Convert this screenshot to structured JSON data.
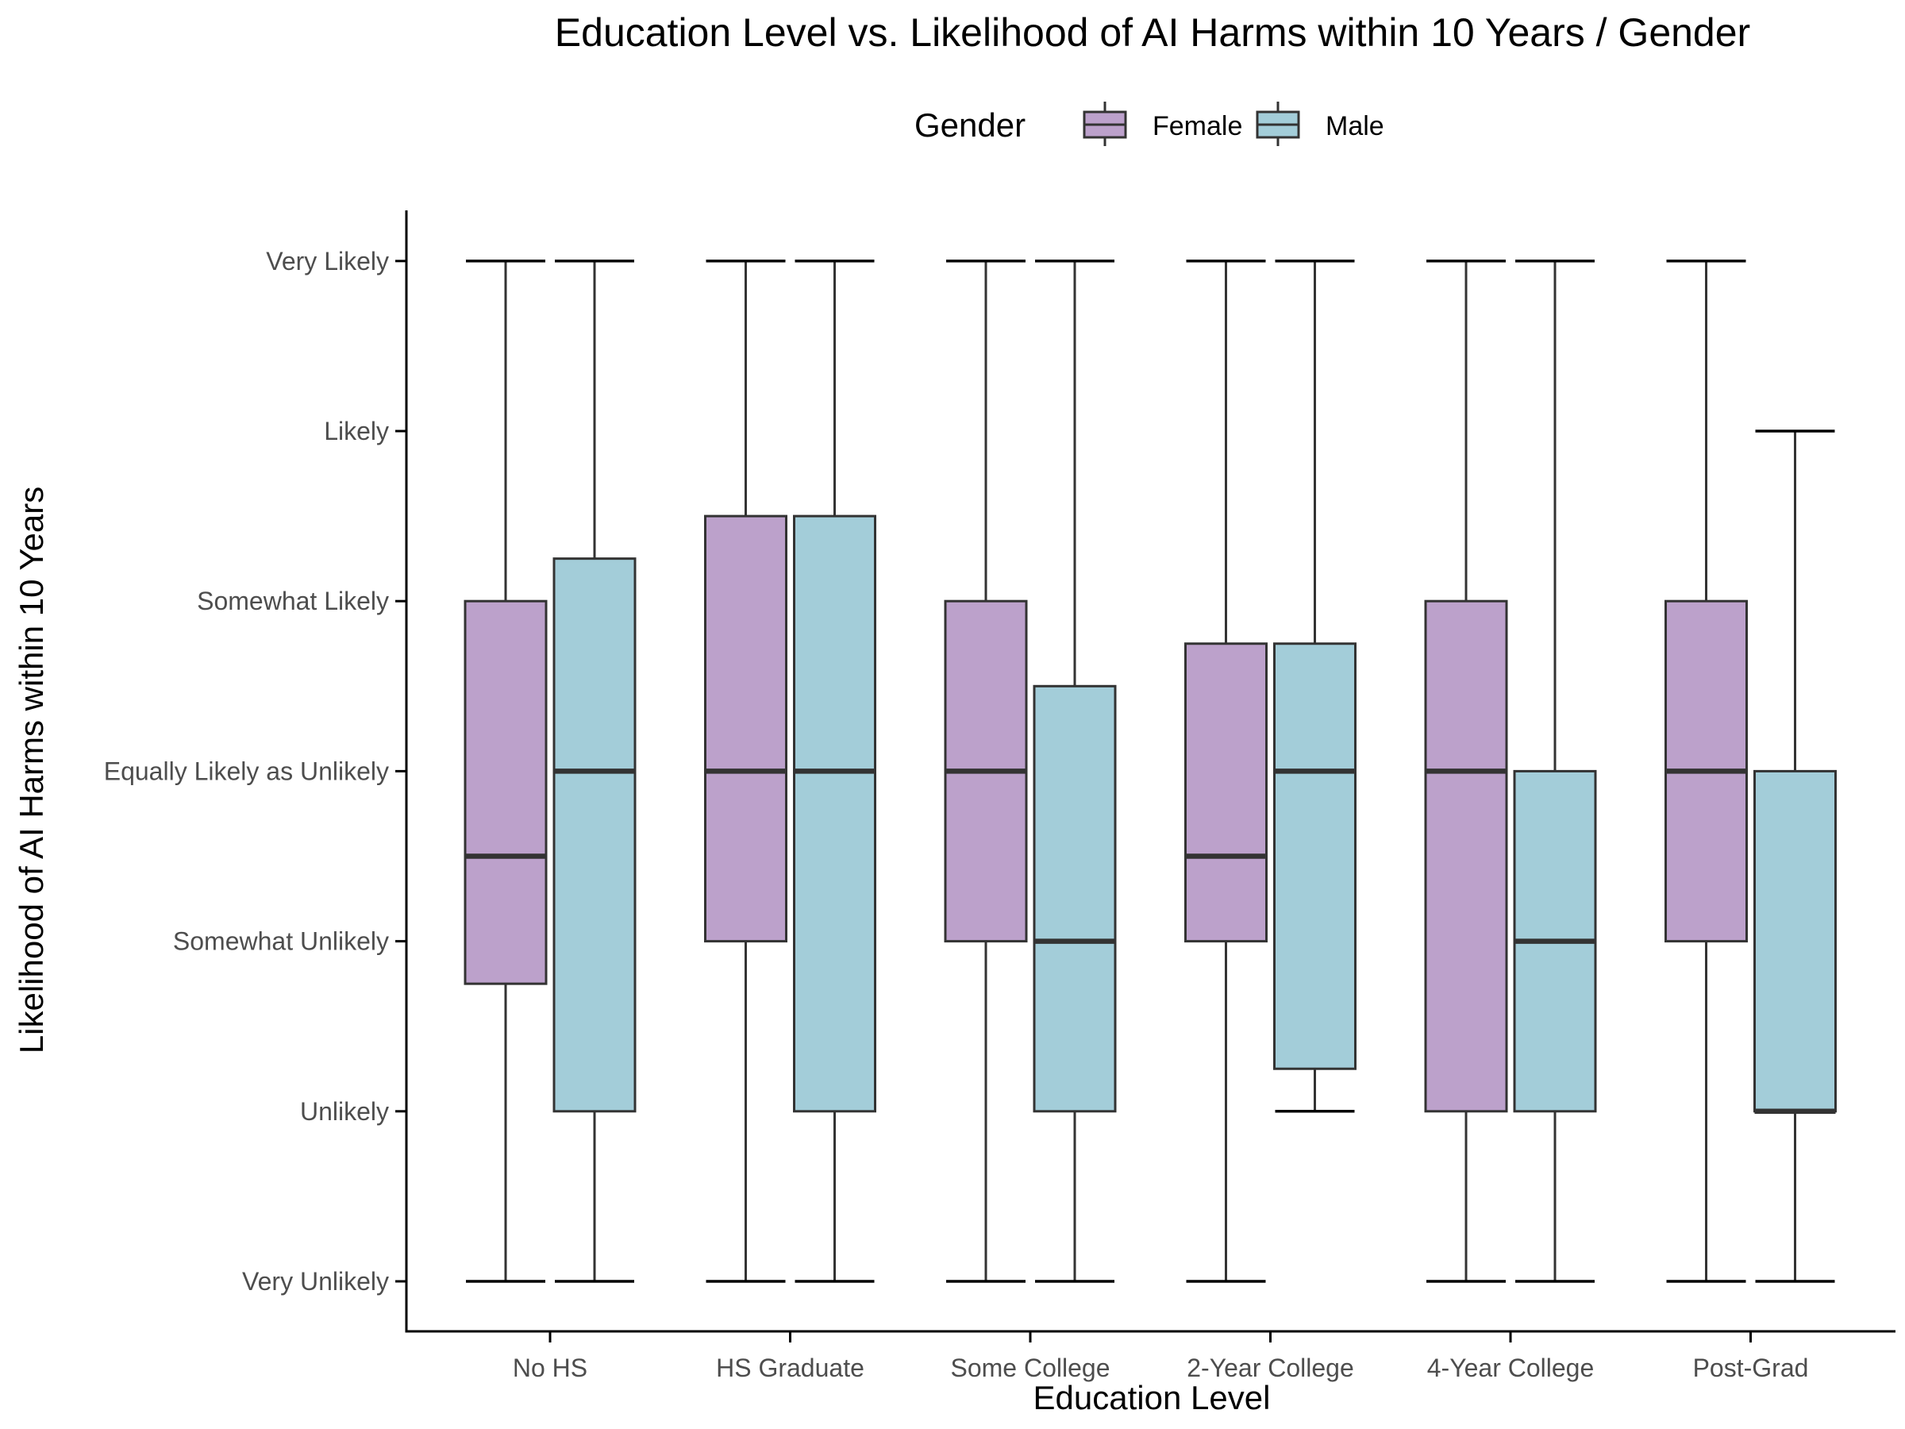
{
  "chart_data": {
    "type": "boxplot",
    "title": "Education Level vs. Likelihood of AI Harms within 10 Years / Gender",
    "xlabel": "Education Level",
    "ylabel": "Likelihood of AI Harms within 10 Years",
    "legend": {
      "title": "Gender",
      "position": "top",
      "entries": [
        "Female",
        "Male"
      ]
    },
    "categories": [
      "No HS",
      "HS Graduate",
      "Some College",
      "2-Year College",
      "4-Year College",
      "Post-Grad"
    ],
    "y_ticks": [
      {
        "value": 1,
        "label": "Very Unlikely"
      },
      {
        "value": 2,
        "label": "Unlikely"
      },
      {
        "value": 3,
        "label": "Somewhat Unlikely"
      },
      {
        "value": 4,
        "label": "Equally Likely as Unlikely"
      },
      {
        "value": 5,
        "label": "Somewhat Likely"
      },
      {
        "value": 6,
        "label": "Likely"
      },
      {
        "value": 7,
        "label": "Very Likely"
      }
    ],
    "ylim": [
      0.7,
      7.3
    ],
    "grid": false,
    "colors": {
      "Female": "#bca1cb",
      "Male": "#a3cdd9",
      "outline": "#333333"
    },
    "series": [
      {
        "name": "Female",
        "boxes": [
          {
            "min": 1,
            "q1": 2.75,
            "median": 3.5,
            "q3": 5,
            "max": 7
          },
          {
            "min": 1,
            "q1": 3,
            "median": 4,
            "q3": 5.5,
            "max": 7
          },
          {
            "min": 1,
            "q1": 3,
            "median": 4,
            "q3": 5,
            "max": 7
          },
          {
            "min": 1,
            "q1": 3,
            "median": 3.5,
            "q3": 4.75,
            "max": 7
          },
          {
            "min": 1,
            "q1": 2,
            "median": 4,
            "q3": 5,
            "max": 7
          },
          {
            "min": 1,
            "q1": 3,
            "median": 4,
            "q3": 5,
            "max": 7
          }
        ]
      },
      {
        "name": "Male",
        "boxes": [
          {
            "min": 1,
            "q1": 2,
            "median": 4,
            "q3": 5.25,
            "max": 7
          },
          {
            "min": 1,
            "q1": 2,
            "median": 4,
            "q3": 5.5,
            "max": 7
          },
          {
            "min": 1,
            "q1": 2,
            "median": 3,
            "q3": 4.5,
            "max": 7
          },
          {
            "min": 2,
            "q1": 2.25,
            "median": 4,
            "q3": 4.75,
            "max": 7
          },
          {
            "min": 1,
            "q1": 2,
            "median": 3,
            "q3": 4,
            "max": 7
          },
          {
            "min": 1,
            "q1": 2,
            "median": 2,
            "q3": 4,
            "max": 6
          }
        ]
      }
    ]
  }
}
